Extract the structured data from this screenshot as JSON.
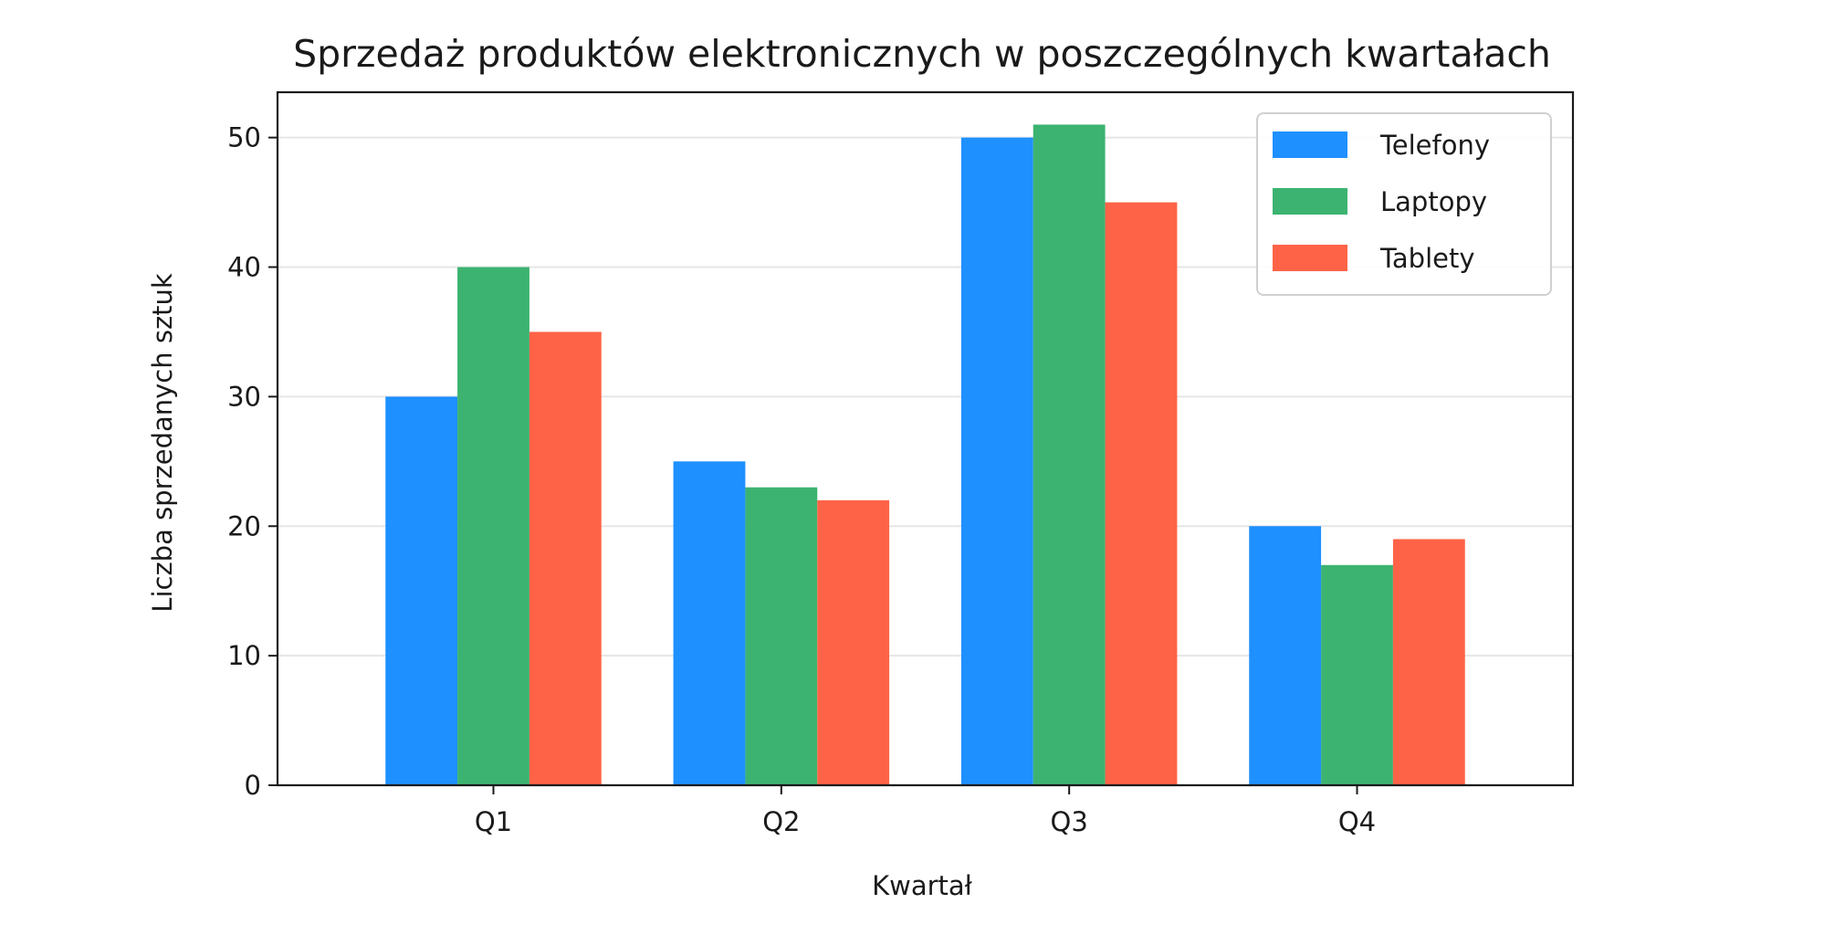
{
  "chart_data": {
    "type": "bar",
    "title": "Sprzedaż produktów elektronicznych w poszczególnych kwartałach",
    "xlabel": "Kwartał",
    "ylabel": "Liczba sprzedanych sztuk",
    "categories": [
      "Q1",
      "Q2",
      "Q3",
      "Q4"
    ],
    "series": [
      {
        "name": "Telefony",
        "color": "#1E90FF",
        "values": [
          30,
          25,
          50,
          20
        ]
      },
      {
        "name": "Laptopy",
        "color": "#3CB371",
        "values": [
          40,
          23,
          51,
          17
        ]
      },
      {
        "name": "Tablety",
        "color": "#FF6347",
        "values": [
          35,
          22,
          45,
          19
        ]
      }
    ],
    "ylim": [
      0,
      53.5
    ],
    "yticks": [
      0,
      10,
      20,
      30,
      40,
      50
    ],
    "grid": "horizontal",
    "legend_position": "top-right"
  }
}
